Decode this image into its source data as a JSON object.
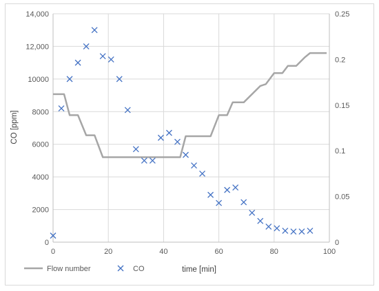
{
  "chart_data": {
    "type": "line",
    "title": "",
    "xlabel": "time [min]",
    "ylabel": "CO [ppm]",
    "y2label": "",
    "xlim": [
      0,
      100
    ],
    "ylim": [
      0,
      14000
    ],
    "y2lim": [
      0,
      0.25
    ],
    "x_ticks": [
      0,
      20,
      40,
      60,
      80,
      100
    ],
    "y_ticks": [
      0,
      2000,
      4000,
      6000,
      8000,
      10000,
      12000,
      14000
    ],
    "y_tick_labels": [
      "0",
      "2000",
      "4000",
      "6000",
      "8000",
      "10000",
      "12,000",
      "14,000"
    ],
    "y2_ticks": [
      0,
      0.05,
      0.1,
      0.15,
      0.2,
      0.25
    ],
    "y2_tick_labels": [
      "0",
      "0.05",
      "0.1",
      "0.15",
      "0.2",
      "0.25"
    ],
    "grid": "vertical and horizontal",
    "legend_position": "bottom",
    "series": [
      {
        "name": "Flow number",
        "type": "line",
        "axis": "secondary",
        "color": "#a6a6a6",
        "points": [
          [
            0,
            0.162
          ],
          [
            4,
            0.162
          ],
          [
            6,
            0.139
          ],
          [
            9,
            0.139
          ],
          [
            12,
            0.117
          ],
          [
            15,
            0.117
          ],
          [
            18,
            0.093
          ],
          [
            46,
            0.093
          ],
          [
            48,
            0.116
          ],
          [
            57,
            0.116
          ],
          [
            60,
            0.139
          ],
          [
            63,
            0.139
          ],
          [
            65,
            0.153
          ],
          [
            69,
            0.153
          ],
          [
            75,
            0.171
          ],
          [
            77,
            0.173
          ],
          [
            80,
            0.185
          ],
          [
            83,
            0.185
          ],
          [
            85,
            0.193
          ],
          [
            88,
            0.193
          ],
          [
            91,
            0.202
          ],
          [
            93,
            0.207
          ],
          [
            99,
            0.207
          ]
        ]
      },
      {
        "name": "CO",
        "type": "scatter",
        "axis": "primary",
        "color": "#4472c4",
        "points": [
          [
            0,
            400
          ],
          [
            3,
            8200
          ],
          [
            6,
            10000
          ],
          [
            9,
            11000
          ],
          [
            12,
            12000
          ],
          [
            15,
            13000
          ],
          [
            18,
            11400
          ],
          [
            21,
            11200
          ],
          [
            24,
            10000
          ],
          [
            27,
            8100
          ],
          [
            30,
            5700
          ],
          [
            33,
            5000
          ],
          [
            36,
            5000
          ],
          [
            39,
            6400
          ],
          [
            42,
            6700
          ],
          [
            45,
            6150
          ],
          [
            48,
            5350
          ],
          [
            51,
            4700
          ],
          [
            54,
            4200
          ],
          [
            57,
            2900
          ],
          [
            60,
            2400
          ],
          [
            63,
            3200
          ],
          [
            66,
            3350
          ],
          [
            69,
            2450
          ],
          [
            72,
            1800
          ],
          [
            75,
            1300
          ],
          [
            78,
            950
          ],
          [
            81,
            850
          ],
          [
            84,
            700
          ],
          [
            87,
            650
          ],
          [
            90,
            650
          ],
          [
            93,
            700
          ]
        ]
      }
    ]
  }
}
